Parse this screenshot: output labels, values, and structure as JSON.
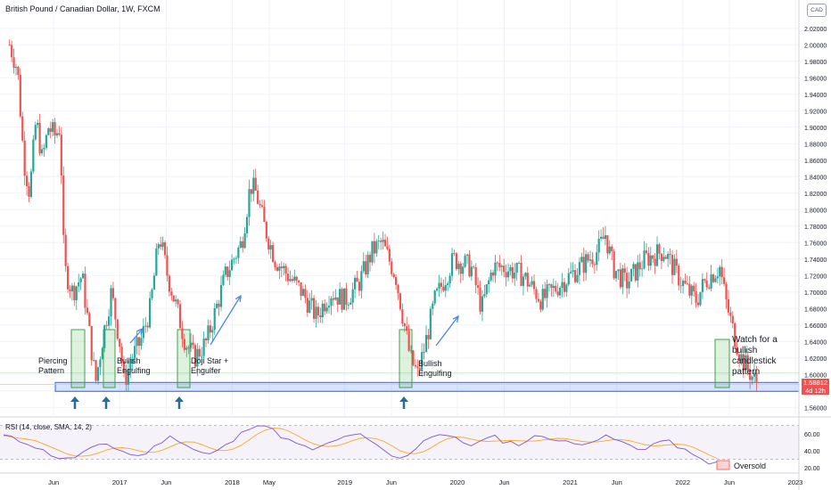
{
  "header": {
    "title": "British Pound / Canadian Dollar, 1W, FXCM",
    "currency_button": "CAD"
  },
  "price_tag": {
    "value": "1.58812",
    "countdown": "4d 12h",
    "color": "#ef5350"
  },
  "rsi": {
    "label": "RSI (14, close, SMA, 14, 2)",
    "legend": "Oversold",
    "levels": [
      70,
      30
    ],
    "ticks": [
      "60.00",
      "40.00",
      "20.00"
    ]
  },
  "annotations": {
    "piercing": "Piercing\nPattern",
    "bullish1": "Bullish\nEngulfing",
    "doji": "Doji Star +\nEngulfer",
    "bullish2": "Bullish\nEngulfing",
    "watch": "Watch for a\nbullish\ncandlestick\npattern"
  },
  "colors": {
    "up": "#26a69a",
    "down": "#ef5350",
    "support": "#2962ff",
    "rsi_line": "#7e57c2",
    "rsi_ma": "#f9a825",
    "arrow": "#2d6a95"
  },
  "chart_data": {
    "type": "candlestick",
    "title": "British Pound / Canadian Dollar, 1W, FXCM",
    "y_axis_ticks": [
      "2.02000",
      "2.00000",
      "1.98000",
      "1.96000",
      "1.94000",
      "1.92000",
      "1.90000",
      "1.88000",
      "1.86000",
      "1.84000",
      "1.82000",
      "1.80000",
      "1.78000",
      "1.76000",
      "1.74000",
      "1.72000",
      "1.70000",
      "1.68000",
      "1.66000",
      "1.64000",
      "1.62000",
      "1.60000",
      "1.58000",
      "1.56000"
    ],
    "x_axis_ticks": [
      "Jun",
      "2017",
      "Jun",
      "2018",
      "May",
      "2019",
      "Jun",
      "2020",
      "Jun",
      "2021",
      "Jun",
      "2022",
      "Jun",
      "2023"
    ],
    "x_axis_tick_dates": [
      "2016-06-01",
      "2017-01-01",
      "2017-06-01",
      "2018-01-01",
      "2018-05-01",
      "2019-01-01",
      "2019-06-01",
      "2020-01-01",
      "2020-06-01",
      "2021-01-01",
      "2021-06-01",
      "2022-01-01",
      "2022-06-01",
      "2023-01-01"
    ],
    "ylim": [
      1.55,
      2.03
    ],
    "last_price": 1.58812,
    "support_zone": [
      1.579,
      1.587
    ],
    "path": [
      [
        "2016-01-10",
        2.0
      ],
      [
        "2016-02-05",
        1.97
      ],
      [
        "2016-02-25",
        1.86
      ],
      [
        "2016-03-15",
        1.82
      ],
      [
        "2016-04-05",
        1.91
      ],
      [
        "2016-04-25",
        1.86
      ],
      [
        "2016-05-15",
        1.9
      ],
      [
        "2016-06-05",
        1.89
      ],
      [
        "2016-06-22",
        1.9
      ],
      [
        "2016-07-05",
        1.73
      ],
      [
        "2016-08-01",
        1.7
      ],
      [
        "2016-09-01",
        1.72
      ],
      [
        "2016-10-05",
        1.62
      ],
      [
        "2016-10-15",
        1.59
      ],
      [
        "2016-11-05",
        1.64
      ],
      [
        "2016-12-05",
        1.7
      ],
      [
        "2017-01-05",
        1.63
      ],
      [
        "2017-01-15",
        1.59
      ],
      [
        "2017-02-10",
        1.62
      ],
      [
        "2017-03-10",
        1.64
      ],
      [
        "2017-04-10",
        1.68
      ],
      [
        "2017-05-10",
        1.77
      ],
      [
        "2017-06-05",
        1.72
      ],
      [
        "2017-07-05",
        1.68
      ],
      [
        "2017-08-01",
        1.64
      ],
      [
        "2017-09-01",
        1.62
      ],
      [
        "2017-10-10",
        1.64
      ],
      [
        "2017-11-10",
        1.68
      ],
      [
        "2017-12-10",
        1.72
      ],
      [
        "2018-01-05",
        1.74
      ],
      [
        "2018-02-01",
        1.76
      ],
      [
        "2018-03-01",
        1.83
      ],
      [
        "2018-03-20",
        1.82
      ],
      [
        "2018-04-15",
        1.78
      ],
      [
        "2018-05-20",
        1.74
      ],
      [
        "2018-07-01",
        1.72
      ],
      [
        "2018-08-15",
        1.7
      ],
      [
        "2018-10-01",
        1.67
      ],
      [
        "2018-11-15",
        1.7
      ],
      [
        "2019-01-01",
        1.69
      ],
      [
        "2019-02-15",
        1.71
      ],
      [
        "2019-04-01",
        1.75
      ],
      [
        "2019-05-01",
        1.76
      ],
      [
        "2019-06-15",
        1.72
      ],
      [
        "2019-08-01",
        1.62
      ],
      [
        "2019-08-25",
        1.6
      ],
      [
        "2019-09-15",
        1.63
      ],
      [
        "2019-10-20",
        1.69
      ],
      [
        "2019-12-20",
        1.74
      ],
      [
        "2020-02-15",
        1.73
      ],
      [
        "2020-03-20",
        1.68
      ],
      [
        "2020-04-25",
        1.73
      ],
      [
        "2020-06-01",
        1.73
      ],
      [
        "2020-08-01",
        1.72
      ],
      [
        "2020-10-01",
        1.69
      ],
      [
        "2020-12-01",
        1.71
      ],
      [
        "2021-02-01",
        1.73
      ],
      [
        "2021-04-01",
        1.75
      ],
      [
        "2021-04-25",
        1.77
      ],
      [
        "2021-05-20",
        1.73
      ],
      [
        "2021-07-01",
        1.71
      ],
      [
        "2021-09-01",
        1.74
      ],
      [
        "2021-11-01",
        1.75
      ],
      [
        "2021-12-15",
        1.72
      ],
      [
        "2022-01-20",
        1.7
      ],
      [
        "2022-02-15",
        1.69
      ],
      [
        "2022-03-10",
        1.71
      ],
      [
        "2022-04-01",
        1.72
      ],
      [
        "2022-05-01",
        1.73
      ],
      [
        "2022-05-20",
        1.69
      ],
      [
        "2022-06-15",
        1.65
      ],
      [
        "2022-07-10",
        1.62
      ],
      [
        "2022-08-10",
        1.6
      ],
      [
        "2022-09-01",
        1.588
      ]
    ],
    "rsi_path": [
      58,
      55,
      52,
      50,
      45,
      40,
      36,
      32,
      30,
      33,
      38,
      42,
      45,
      48,
      44,
      40,
      36,
      34,
      38,
      44,
      52,
      56,
      54,
      48,
      42,
      38,
      36,
      40,
      46,
      52,
      60,
      68,
      72,
      70,
      64,
      58,
      52,
      48,
      44,
      42,
      44,
      48,
      52,
      56,
      60,
      58,
      52,
      46,
      40,
      34,
      30,
      36,
      44,
      52,
      58,
      60,
      58,
      54,
      50,
      48,
      50,
      54,
      56,
      52,
      50,
      48,
      52,
      56,
      58,
      56,
      52,
      50,
      48,
      50,
      52,
      54,
      56,
      54,
      50,
      46,
      42,
      44,
      48,
      52,
      50,
      46,
      40,
      34,
      30,
      27,
      25
    ]
  }
}
